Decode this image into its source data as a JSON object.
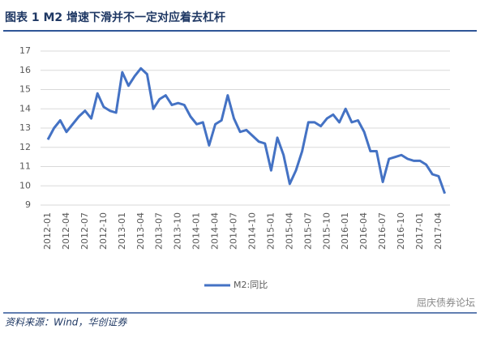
{
  "chart_data": {
    "type": "line",
    "title": "图表 1   M2 增速下滑并不一定对应着去杠杆",
    "source": "资料来源：Wind，华创证券",
    "watermark": "屈庆债券论坛",
    "categories": [
      "2012-01",
      null,
      null,
      "2012-04",
      null,
      null,
      "2012-07",
      null,
      null,
      "2012-10",
      null,
      null,
      "2013-01",
      null,
      null,
      "2013-04",
      null,
      null,
      "2013-07",
      null,
      null,
      "2013-10",
      null,
      null,
      "2014-01",
      null,
      null,
      "2014-04",
      null,
      null,
      "2014-07",
      null,
      null,
      "2014-10",
      null,
      null,
      "2015-01",
      null,
      null,
      "2015-04",
      null,
      null,
      "2015-07",
      null,
      null,
      "2015-10",
      null,
      null,
      "2016-01",
      null,
      null,
      "2016-04",
      null,
      null,
      "2016-07",
      null,
      null,
      "2016-10",
      null,
      null,
      "2017-01",
      null,
      null,
      "2017-04",
      null
    ],
    "series": [
      {
        "name": "M2:同比",
        "color": "#4472c4",
        "values": [
          12.4,
          13.0,
          13.4,
          12.8,
          13.2,
          13.6,
          13.9,
          13.5,
          14.8,
          14.1,
          13.9,
          13.8,
          15.9,
          15.2,
          15.7,
          16.1,
          15.8,
          14.0,
          14.5,
          14.7,
          14.2,
          14.3,
          14.2,
          13.6,
          13.2,
          13.3,
          12.1,
          13.2,
          13.4,
          14.7,
          13.5,
          12.8,
          12.9,
          12.6,
          12.3,
          12.2,
          10.8,
          12.5,
          11.6,
          10.1,
          10.8,
          11.8,
          13.3,
          13.3,
          13.1,
          13.5,
          13.7,
          13.3,
          14.0,
          13.3,
          13.4,
          12.8,
          11.8,
          11.8,
          10.2,
          11.4,
          11.5,
          11.6,
          11.4,
          11.3,
          11.3,
          11.1,
          10.6,
          10.5,
          9.6
        ]
      }
    ],
    "ylim": [
      9,
      17
    ],
    "yticks": [
      9,
      10,
      11,
      12,
      13,
      14,
      15,
      16,
      17
    ],
    "grid": true,
    "legend": "bottom"
  }
}
